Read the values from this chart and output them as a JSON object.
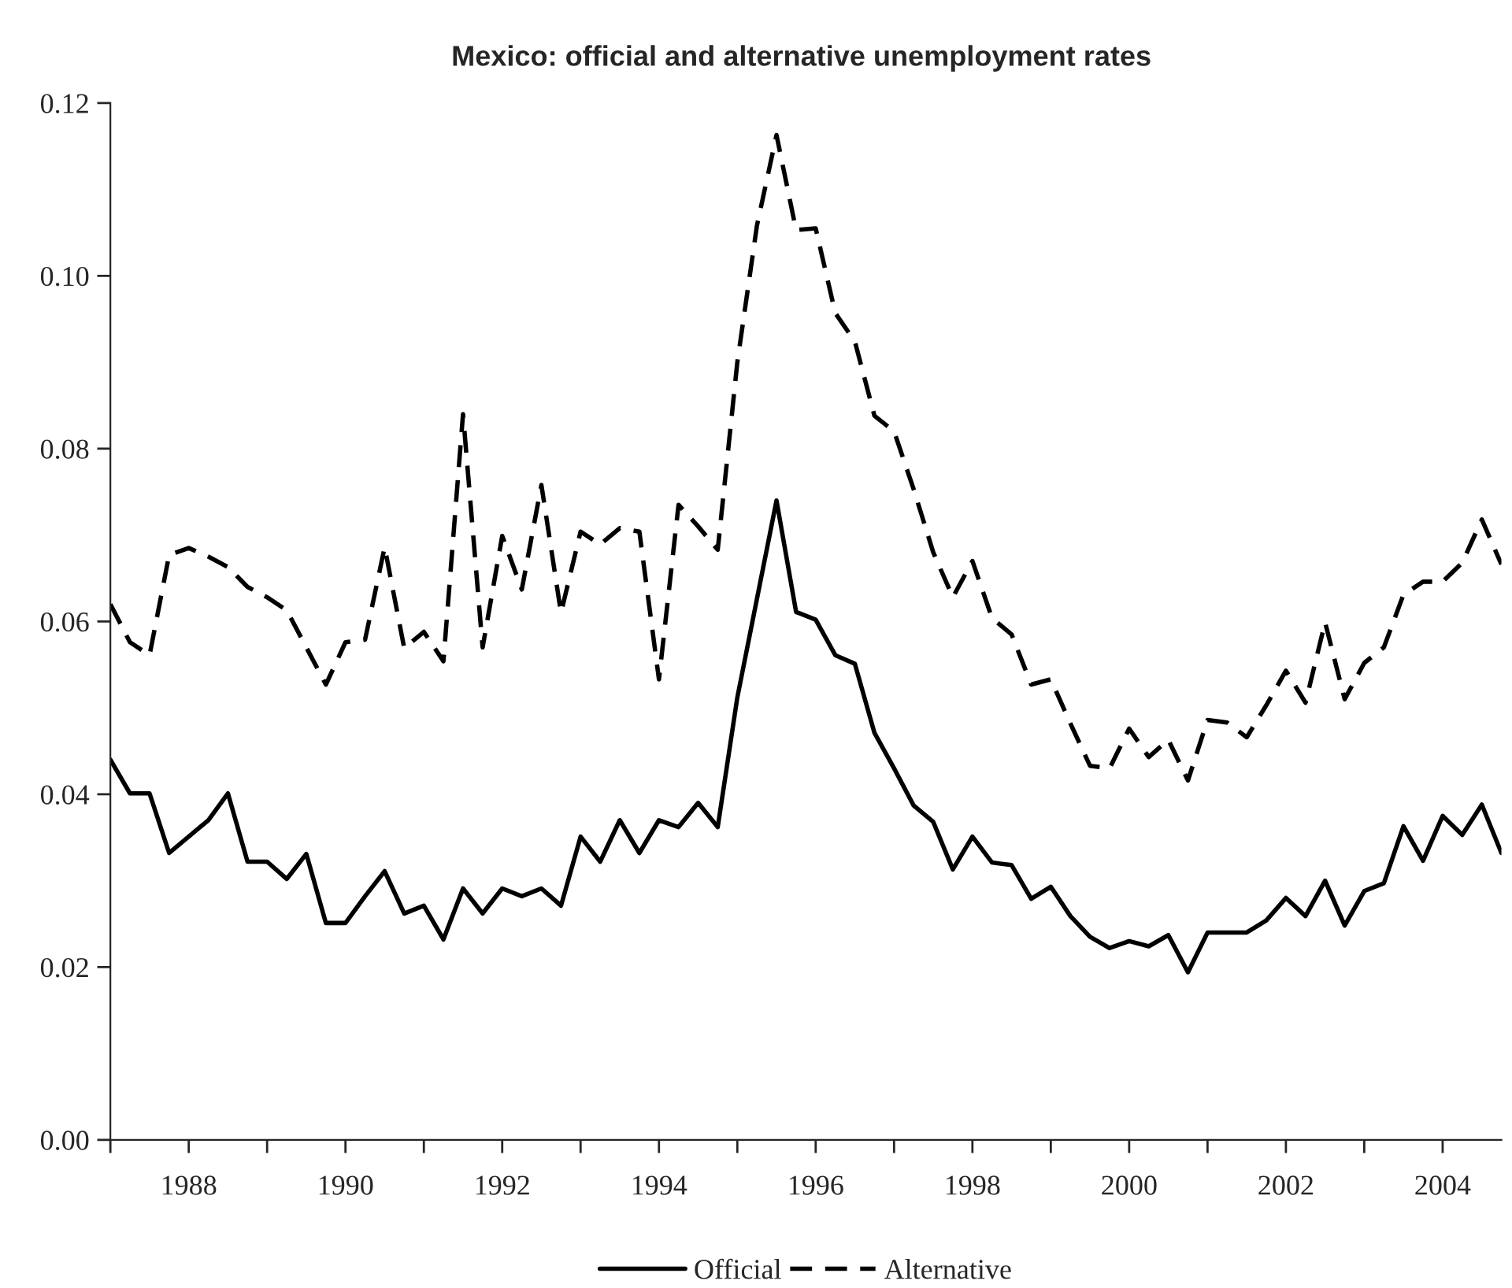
{
  "chart_data": {
    "type": "line",
    "title": "Mexico: official and alternative unemployment rates",
    "x": [
      1987,
      1987.25,
      1987.5,
      1987.75,
      1988,
      1988.25,
      1988.5,
      1988.75,
      1989,
      1989.25,
      1989.5,
      1989.75,
      1990,
      1990.25,
      1990.5,
      1990.75,
      1991,
      1991.25,
      1991.5,
      1991.75,
      1992,
      1992.25,
      1992.5,
      1992.75,
      1993,
      1993.25,
      1993.5,
      1993.75,
      1994,
      1994.25,
      1994.5,
      1994.75,
      1995,
      1995.25,
      1995.5,
      1995.75,
      1996,
      1996.25,
      1996.5,
      1996.75,
      1997,
      1997.25,
      1997.5,
      1997.75,
      1998,
      1998.25,
      1998.5,
      1998.75,
      1999,
      1999.25,
      1999.5,
      1999.75,
      2000,
      2000.25,
      2000.5,
      2000.75,
      2001,
      2001.25,
      2001.5,
      2001.75,
      2002,
      2002.25,
      2002.5,
      2002.75,
      2003,
      2003.25,
      2003.5,
      2003.75,
      2004,
      2004.25,
      2004.5,
      2004.75
    ],
    "series": [
      {
        "name": "Official",
        "color": "#000000",
        "line_style": "solid",
        "values": [
          0.044,
          0.0401,
          0.0401,
          0.0332,
          0.0351,
          0.037,
          0.0401,
          0.0322,
          0.0322,
          0.0302,
          0.0331,
          0.0251,
          0.0251,
          0.0282,
          0.0311,
          0.0262,
          0.0271,
          0.0232,
          0.0291,
          0.0262,
          0.0291,
          0.0282,
          0.0291,
          0.0271,
          0.0351,
          0.0322,
          0.037,
          0.0332,
          0.037,
          0.0362,
          0.039,
          0.0362,
          0.0512,
          0.0626,
          0.074,
          0.0611,
          0.0602,
          0.0561,
          0.0551,
          0.0471,
          0.043,
          0.0387,
          0.0368,
          0.0313,
          0.0351,
          0.0321,
          0.0318,
          0.0279,
          0.0293,
          0.0259,
          0.0235,
          0.0222,
          0.023,
          0.0224,
          0.0237,
          0.0194,
          0.024,
          0.024,
          0.024,
          0.0254,
          0.028,
          0.0259,
          0.03,
          0.0248,
          0.0288,
          0.0297,
          0.0363,
          0.0323,
          0.0375,
          0.0353,
          0.0388,
          0.0332
        ]
      },
      {
        "name": "Alternative",
        "color": "#000000",
        "line_style": "dashed",
        "values": [
          0.062,
          0.0576,
          0.0561,
          0.0677,
          0.0685,
          0.0675,
          0.0663,
          0.064,
          0.0628,
          0.0613,
          0.057,
          0.0527,
          0.0576,
          0.0579,
          0.0686,
          0.0569,
          0.0588,
          0.0554,
          0.084,
          0.057,
          0.0699,
          0.0637,
          0.0758,
          0.061,
          0.0704,
          0.0689,
          0.0708,
          0.0704,
          0.0533,
          0.0735,
          0.071,
          0.0683,
          0.09,
          0.1058,
          0.1163,
          0.1053,
          0.1055,
          0.0957,
          0.0924,
          0.0838,
          0.082,
          0.0753,
          0.068,
          0.0628,
          0.067,
          0.0604,
          0.0585,
          0.0527,
          0.0533,
          0.0482,
          0.0433,
          0.043,
          0.0476,
          0.0443,
          0.0463,
          0.0416,
          0.0486,
          0.0483,
          0.0466,
          0.0503,
          0.0543,
          0.0506,
          0.0599,
          0.051,
          0.0552,
          0.057,
          0.0631,
          0.0646,
          0.0646,
          0.0668,
          0.0718,
          0.0666
        ]
      }
    ],
    "xlim": [
      1987,
      2004.75
    ],
    "xticks": [
      {
        "value": 1987,
        "label": null
      },
      {
        "value": 1988,
        "label": "1988"
      },
      {
        "value": 1989,
        "label": null
      },
      {
        "value": 1990,
        "label": "1990"
      },
      {
        "value": 1991,
        "label": null
      },
      {
        "value": 1992,
        "label": "1992"
      },
      {
        "value": 1993,
        "label": null
      },
      {
        "value": 1994,
        "label": "1994"
      },
      {
        "value": 1995,
        "label": null
      },
      {
        "value": 1996,
        "label": "1996"
      },
      {
        "value": 1997,
        "label": null
      },
      {
        "value": 1998,
        "label": "1998"
      },
      {
        "value": 1999,
        "label": null
      },
      {
        "value": 2000,
        "label": "2000"
      },
      {
        "value": 2001,
        "label": null
      },
      {
        "value": 2002,
        "label": "2002"
      },
      {
        "value": 2003,
        "label": null
      },
      {
        "value": 2004,
        "label": "2004"
      }
    ],
    "ylim": [
      0,
      0.12
    ],
    "yticks": [
      {
        "value": 0,
        "label": "0.00"
      },
      {
        "value": 0.02,
        "label": "0.02"
      },
      {
        "value": 0.04,
        "label": "0.04"
      },
      {
        "value": 0.06,
        "label": "0.06"
      },
      {
        "value": 0.08,
        "label": "0.08"
      },
      {
        "value": 0.1,
        "label": "0.10"
      },
      {
        "value": 0.12,
        "label": "0.12"
      }
    ],
    "grid": false,
    "legend": "bottom"
  }
}
